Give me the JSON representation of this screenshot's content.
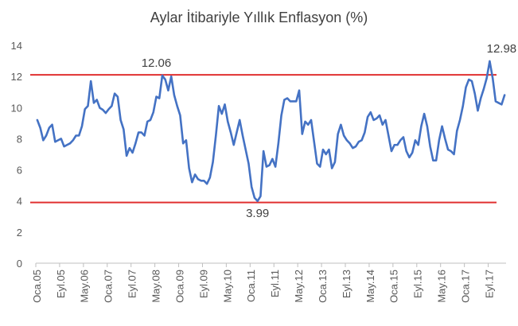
{
  "chart_data": {
    "type": "line",
    "title": "Aylar İtibariyle Yıllık Enflasyon (%)",
    "xlabel": "",
    "ylabel": "",
    "ylim": [
      0,
      14
    ],
    "yticks": [
      0,
      2,
      4,
      6,
      8,
      10,
      12,
      14
    ],
    "grid": false,
    "legend": "none",
    "x_tick_labels": [
      "Oca.05",
      "Eyl.05",
      "May.06",
      "Oca.07",
      "Eyl.07",
      "May.08",
      "Oca.09",
      "Eyl.09",
      "May.10",
      "Oca.11",
      "Eyl.11",
      "May.12",
      "Oca.13",
      "Eyl.13",
      "May.14",
      "Oca.15",
      "Eyl.15",
      "May.16",
      "Oca.17",
      "Eyl.17"
    ],
    "x_tick_label_step_months": 8,
    "series": [
      {
        "color": "#4472C4",
        "start": "Oca.05",
        "values": [
          9.2,
          8.7,
          7.9,
          8.2,
          8.7,
          8.9,
          7.8,
          7.9,
          8.0,
          7.5,
          7.6,
          7.7,
          7.9,
          8.2,
          8.2,
          8.8,
          9.9,
          10.1,
          11.7,
          10.3,
          10.5,
          9.98,
          9.86,
          9.65,
          9.9,
          10.1,
          10.9,
          10.7,
          9.2,
          8.6,
          6.9,
          7.4,
          7.1,
          7.7,
          8.4,
          8.4,
          8.2,
          9.1,
          9.2,
          9.7,
          10.7,
          10.6,
          12.06,
          11.8,
          11.1,
          12.0,
          10.8,
          10.1,
          9.5,
          7.7,
          7.9,
          6.1,
          5.2,
          5.7,
          5.4,
          5.3,
          5.3,
          5.1,
          5.5,
          6.5,
          8.2,
          10.1,
          9.6,
          10.2,
          9.1,
          8.4,
          7.6,
          8.4,
          9.2,
          8.2,
          7.3,
          6.4,
          4.9,
          4.2,
          3.99,
          4.3,
          7.2,
          6.2,
          6.3,
          6.7,
          6.2,
          7.7,
          9.5,
          10.5,
          10.6,
          10.4,
          10.4,
          10.4,
          11.1,
          8.3,
          9.1,
          8.9,
          9.2,
          7.8,
          6.4,
          6.2,
          7.3,
          7.0,
          7.3,
          6.1,
          6.5,
          8.3,
          8.9,
          8.2,
          7.9,
          7.7,
          7.4,
          7.5,
          7.8,
          7.9,
          8.4,
          9.4,
          9.7,
          9.2,
          9.3,
          9.5,
          8.9,
          9.2,
          8.2,
          7.2,
          7.6,
          7.6,
          7.9,
          8.1,
          7.2,
          6.8,
          7.1,
          7.9,
          7.6,
          8.8,
          9.6,
          8.8,
          7.5,
          6.6,
          6.6,
          7.9,
          8.8,
          8.0,
          7.3,
          7.2,
          7.0,
          8.5,
          9.2,
          10.1,
          11.3,
          11.8,
          11.7,
          10.9,
          9.8,
          10.6,
          11.2,
          11.9,
          12.98,
          11.9,
          10.4,
          10.3,
          10.2,
          10.8
        ]
      }
    ],
    "reference_lines": [
      {
        "value": 12.1,
        "color": "#E03030"
      },
      {
        "value": 3.9,
        "color": "#E03030"
      }
    ],
    "annotations": [
      {
        "text": "12.06",
        "at": "May.08",
        "value": 12.06
      },
      {
        "text": "3.99",
        "at": "Mar.11",
        "value": 3.99
      },
      {
        "text": "12.98",
        "at": "Oca.18",
        "value": 12.98
      }
    ]
  }
}
